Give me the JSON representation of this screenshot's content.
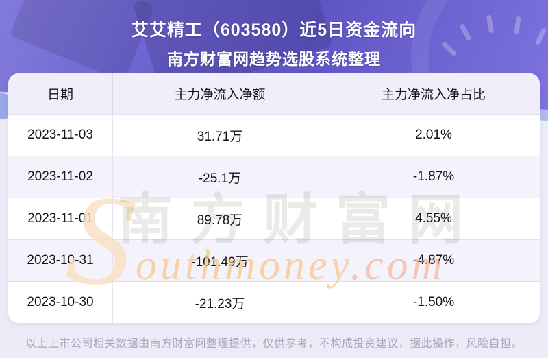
{
  "header": {
    "title": "艾艾精工（603580）近5日资金流向",
    "subtitle": "南方财富网趋势选股系统整理"
  },
  "table": {
    "columns": [
      "日期",
      "主力净流入净额",
      "主力净流入净占比"
    ],
    "rows": [
      {
        "date": "2023-11-03",
        "net_inflow": "31.71万",
        "ratio": "2.01%"
      },
      {
        "date": "2023-11-02",
        "net_inflow": "-25.1万",
        "ratio": "-1.87%"
      },
      {
        "date": "2023-11-01",
        "net_inflow": "89.78万",
        "ratio": "4.55%"
      },
      {
        "date": "2023-10-31",
        "net_inflow": "-101.49万",
        "ratio": "-4.87%"
      },
      {
        "date": "2023-10-30",
        "net_inflow": "-21.23万",
        "ratio": "-1.50%"
      }
    ]
  },
  "watermark": {
    "swash": "S",
    "cn": "南方财富网",
    "en_main": "outhmoney",
    "en_suffix": ".com"
  },
  "footer": {
    "disclaimer": "以上上市公司相关数据由南方财富网整理提供，仅供参考，不构成投资建议，据此操作，风险自担。"
  },
  "colors": {
    "hero_gradient_start": "#837bda",
    "hero_gradient_mid": "#5e56c4",
    "hero_gradient_end": "#7d73df",
    "page_bg": "#edebf7",
    "card_bg": "#ffffff",
    "header_row_bg": "#f1eefb",
    "row_alt_bg": "#f4f2fb",
    "divider": "#e1dfeb",
    "text_primary": "#141414",
    "footer_text": "#a9a7b7",
    "watermark_orange": "#f6c68a",
    "watermark_gray": "rgba(95,90,82,0.13)"
  },
  "chart_data": {
    "type": "table",
    "title": "艾艾精工（603580）近5日资金流向",
    "subtitle": "南方财富网趋势选股系统整理",
    "columns": [
      "日期",
      "主力净流入净额",
      "主力净流入净占比"
    ],
    "rows": [
      [
        "2023-11-03",
        "31.71万",
        "2.01%"
      ],
      [
        "2023-11-02",
        "-25.1万",
        "-1.87%"
      ],
      [
        "2023-11-01",
        "89.78万",
        "4.55%"
      ],
      [
        "2023-10-31",
        "-101.49万",
        "-4.87%"
      ],
      [
        "2023-10-30",
        "-21.23万",
        "-1.50%"
      ]
    ],
    "dates": [
      "2023-11-03",
      "2023-11-02",
      "2023-11-01",
      "2023-10-31",
      "2023-10-30"
    ],
    "net_inflow_wan": [
      31.71,
      -25.1,
      89.78,
      -101.49,
      -21.23
    ],
    "net_inflow_ratio_pct": [
      2.01,
      -1.87,
      4.55,
      -4.87,
      -1.5
    ]
  }
}
